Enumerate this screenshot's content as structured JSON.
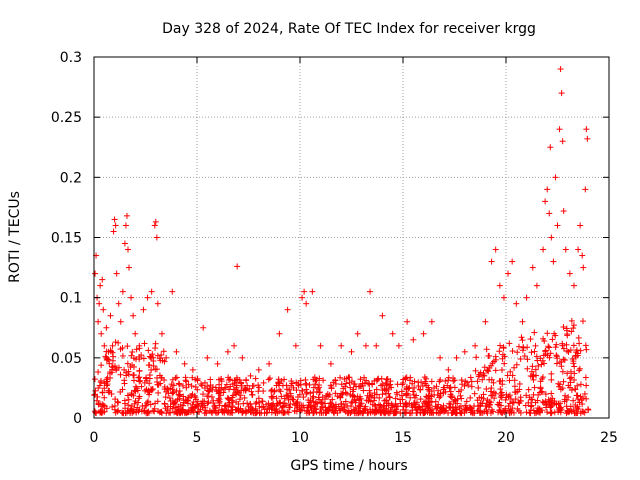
{
  "chart_data": {
    "type": "scatter",
    "title": "Day 328 of 2024, Rate Of TEC Index for receiver krgg",
    "xlabel": "GPS time / hours",
    "ylabel": "ROTI / TECUs",
    "xlim": [
      0,
      25
    ],
    "ylim": [
      0,
      0.3
    ],
    "xticks": [
      0,
      5,
      10,
      15,
      20,
      25
    ],
    "xtick_labels": [
      "0",
      "5",
      "10",
      "15",
      "20",
      "25"
    ],
    "yticks": [
      0,
      0.05,
      0.1,
      0.15,
      0.2,
      0.25,
      0.3
    ],
    "ytick_labels": [
      "0",
      "0.05",
      "0.1",
      "0.15",
      "0.2",
      "0.25",
      "0.3"
    ],
    "grid": true,
    "marker": "+",
    "color": "#ff0000",
    "series": [
      {
        "points": [
          [
            0.05,
            0.12
          ],
          [
            0.1,
            0.135
          ],
          [
            0.15,
            0.1
          ],
          [
            0.2,
            0.08
          ],
          [
            0.25,
            0.095
          ],
          [
            0.3,
            0.11
          ],
          [
            0.35,
            0.07
          ],
          [
            0.4,
            0.115
          ],
          [
            0.45,
            0.09
          ],
          [
            0.5,
            0.06
          ],
          [
            0.6,
            0.075
          ],
          [
            0.7,
            0.055
          ],
          [
            0.8,
            0.085
          ],
          [
            0.9,
            0.06
          ],
          [
            0.95,
            0.155
          ],
          [
            1.0,
            0.165
          ],
          [
            1.05,
            0.16
          ],
          [
            1.1,
            0.12
          ],
          [
            1.2,
            0.095
          ],
          [
            1.3,
            0.08
          ],
          [
            1.4,
            0.105
          ],
          [
            1.5,
            0.145
          ],
          [
            1.55,
            0.16
          ],
          [
            1.6,
            0.168
          ],
          [
            1.65,
            0.14
          ],
          [
            1.7,
            0.125
          ],
          [
            1.8,
            0.1
          ],
          [
            1.9,
            0.085
          ],
          [
            2.0,
            0.07
          ],
          [
            2.2,
            0.06
          ],
          [
            2.4,
            0.09
          ],
          [
            2.6,
            0.1
          ],
          [
            2.8,
            0.105
          ],
          [
            2.95,
            0.16
          ],
          [
            3.0,
            0.163
          ],
          [
            3.05,
            0.15
          ],
          [
            3.1,
            0.095
          ],
          [
            3.3,
            0.07
          ],
          [
            3.5,
            0.05
          ],
          [
            3.8,
            0.105
          ],
          [
            4.0,
            0.055
          ],
          [
            4.4,
            0.045
          ],
          [
            4.8,
            0.04
          ],
          [
            5.3,
            0.075
          ],
          [
            5.5,
            0.05
          ],
          [
            6.0,
            0.045
          ],
          [
            6.5,
            0.055
          ],
          [
            6.8,
            0.06
          ],
          [
            6.95,
            0.126
          ],
          [
            7.2,
            0.05
          ],
          [
            7.6,
            0.035
          ],
          [
            8.0,
            0.04
          ],
          [
            8.5,
            0.045
          ],
          [
            9.0,
            0.07
          ],
          [
            9.4,
            0.09
          ],
          [
            9.8,
            0.06
          ],
          [
            10.1,
            0.1
          ],
          [
            10.2,
            0.105
          ],
          [
            10.3,
            0.095
          ],
          [
            10.6,
            0.105
          ],
          [
            11.0,
            0.06
          ],
          [
            11.5,
            0.045
          ],
          [
            12.0,
            0.06
          ],
          [
            12.5,
            0.055
          ],
          [
            12.8,
            0.07
          ],
          [
            13.2,
            0.06
          ],
          [
            13.4,
            0.105
          ],
          [
            13.7,
            0.06
          ],
          [
            14.0,
            0.085
          ],
          [
            14.5,
            0.07
          ],
          [
            14.8,
            0.06
          ],
          [
            15.2,
            0.08
          ],
          [
            15.5,
            0.065
          ],
          [
            16.0,
            0.07
          ],
          [
            16.4,
            0.08
          ],
          [
            16.8,
            0.05
          ],
          [
            17.2,
            0.04
          ],
          [
            17.6,
            0.05
          ],
          [
            18.0,
            0.055
          ],
          [
            18.5,
            0.06
          ],
          [
            19.0,
            0.08
          ],
          [
            19.3,
            0.13
          ],
          [
            19.5,
            0.14
          ],
          [
            19.7,
            0.11
          ],
          [
            19.9,
            0.1
          ],
          [
            20.1,
            0.12
          ],
          [
            20.3,
            0.13
          ],
          [
            20.5,
            0.095
          ],
          [
            20.8,
            0.08
          ],
          [
            21.0,
            0.1
          ],
          [
            21.3,
            0.125
          ],
          [
            21.5,
            0.11
          ],
          [
            21.8,
            0.14
          ],
          [
            21.9,
            0.18
          ],
          [
            22.0,
            0.19
          ],
          [
            22.1,
            0.17
          ],
          [
            22.15,
            0.225
          ],
          [
            22.2,
            0.15
          ],
          [
            22.3,
            0.13
          ],
          [
            22.4,
            0.2
          ],
          [
            22.5,
            0.16
          ],
          [
            22.6,
            0.24
          ],
          [
            22.65,
            0.29
          ],
          [
            22.7,
            0.27
          ],
          [
            22.75,
            0.23
          ],
          [
            22.8,
            0.172
          ],
          [
            22.9,
            0.14
          ],
          [
            23.1,
            0.12
          ],
          [
            23.3,
            0.11
          ],
          [
            23.5,
            0.14
          ],
          [
            23.6,
            0.16
          ],
          [
            23.7,
            0.135
          ],
          [
            23.75,
            0.125
          ],
          [
            23.85,
            0.19
          ],
          [
            23.9,
            0.24
          ],
          [
            23.95,
            0.232
          ]
        ],
        "band": "dense background of points roughly 0.005–0.05 TECU across 0–24 h"
      }
    ]
  }
}
